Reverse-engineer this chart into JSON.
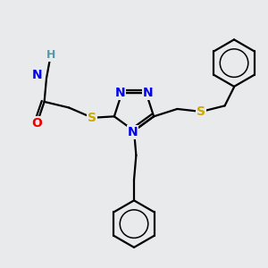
{
  "bg_color": "#e8eaeb",
  "bond_color": "#000000",
  "bond_width": 1.6,
  "atom_colors": {
    "N": "#0000ee",
    "O": "#ee0000",
    "S": "#ccaa00",
    "H": "#5599aa",
    "C": "#000000"
  }
}
